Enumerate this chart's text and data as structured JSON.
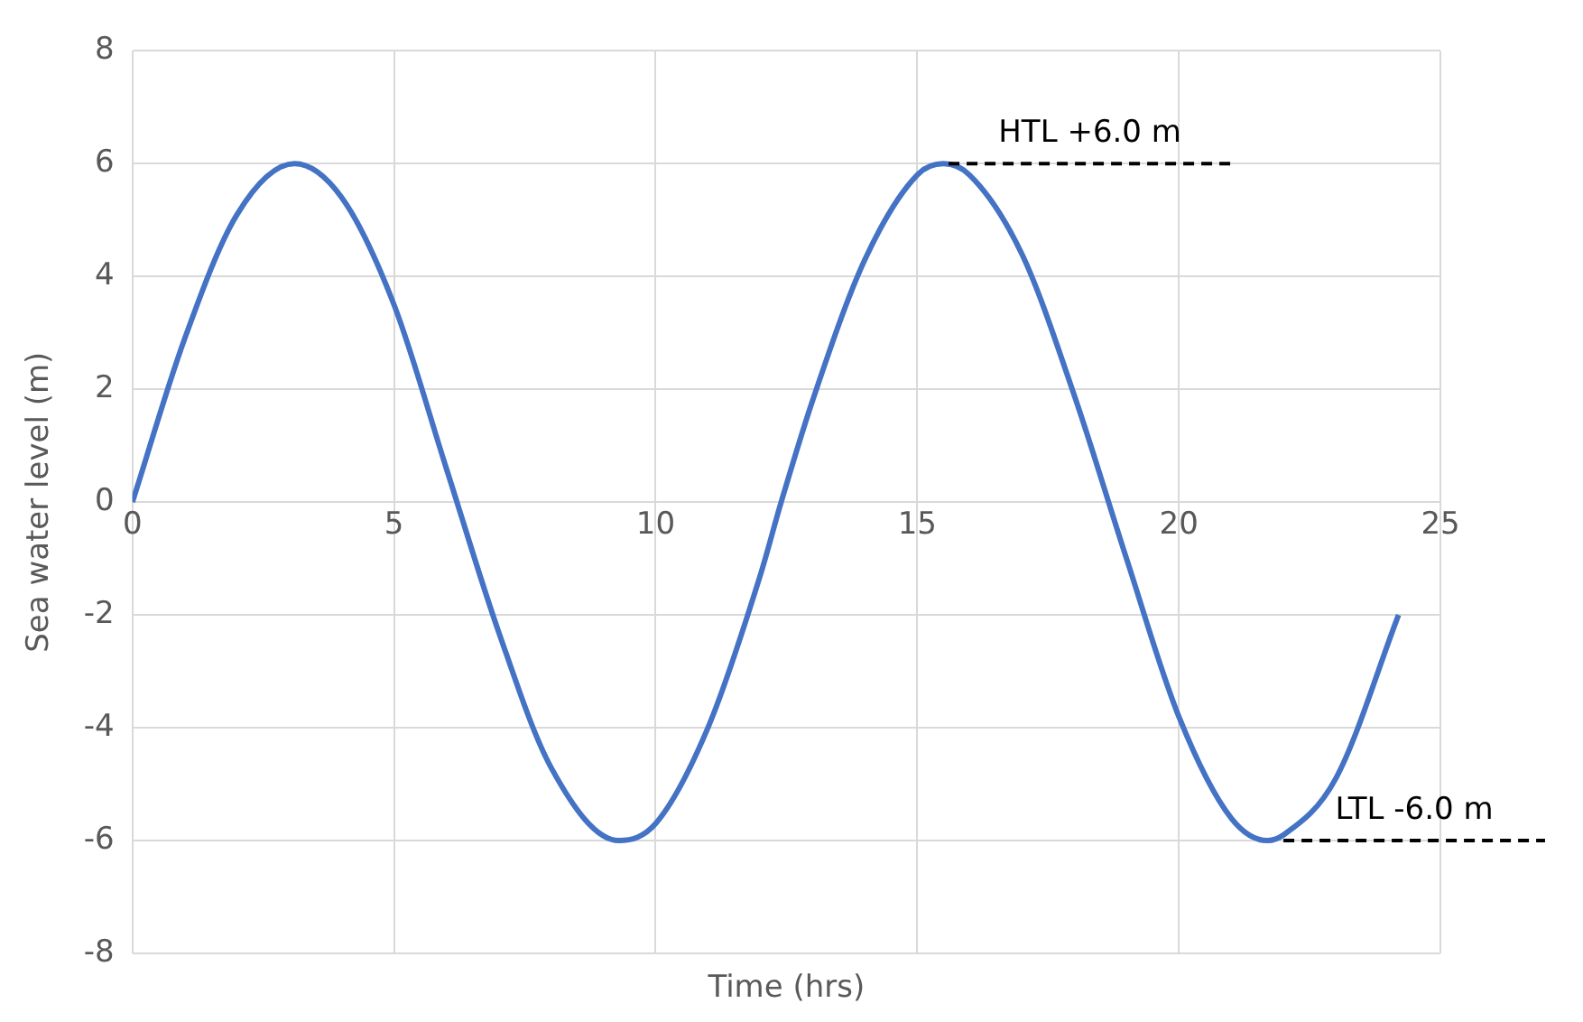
{
  "chart_data": {
    "type": "line",
    "xlabel": "Time (hrs)",
    "ylabel": "Sea water level (m)",
    "series": [
      {
        "color": "#4472c4",
        "x": [
          0,
          1,
          2,
          3.1,
          4,
          5,
          6,
          7,
          8,
          9.3,
          10,
          11,
          12,
          12.4,
          13,
          14,
          15,
          15.5,
          16,
          17,
          18,
          19,
          20,
          21,
          21.7,
          22,
          23,
          24.2
        ],
        "values": [
          0,
          2.9,
          5.1,
          6,
          5.4,
          3.5,
          0.6,
          -2.3,
          -4.7,
          -6,
          -5.7,
          -4,
          -1.3,
          0,
          1.8,
          4.3,
          5.8,
          6,
          5.8,
          4.4,
          1.9,
          -1,
          -3.8,
          -5.6,
          -6,
          -5.9,
          -4.9,
          -2
        ]
      }
    ],
    "xlim": [
      0,
      25
    ],
    "xticks": [
      0,
      5,
      10,
      15,
      20,
      25
    ],
    "ylim": [
      -8,
      8
    ],
    "yticks": [
      -8,
      -6,
      -4,
      -2,
      0,
      2,
      4,
      6,
      8
    ],
    "grid": true,
    "legend": false,
    "marker": "none",
    "line_style": "solid",
    "ref_lines": [
      {
        "axis": "y",
        "value": 6,
        "label": "HTL +6.0 m",
        "color": "#000000",
        "line_style": "dashed"
      },
      {
        "axis": "y",
        "value": -6,
        "label": "LTL -6.0 m",
        "color": "#000000",
        "line_style": "dashed"
      }
    ]
  }
}
